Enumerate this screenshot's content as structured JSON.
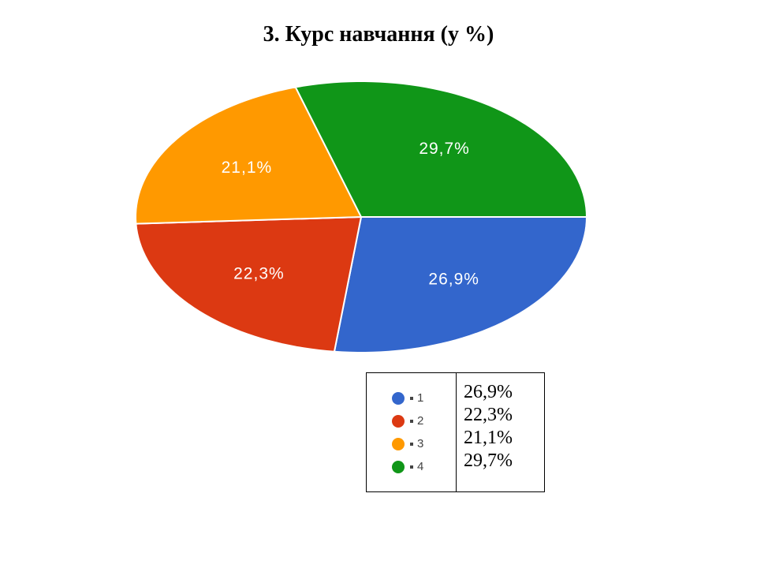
{
  "title": "3. Курс навчання (у %)",
  "chart_data": {
    "type": "pie",
    "title": "3. Курс навчання (у %)",
    "categories": [
      "1",
      "2",
      "3",
      "4"
    ],
    "values": [
      26.9,
      22.3,
      21.1,
      29.7
    ],
    "labels": [
      "26,9%",
      "22,3%",
      "21,1%",
      "29,7%"
    ],
    "colors": [
      "#3366cc",
      "#dc3912",
      "#ff9900",
      "#109618"
    ],
    "legend_position": "bottom-right table"
  },
  "legend": {
    "items": [
      {
        "label": "1",
        "color": "#3366cc"
      },
      {
        "label": "2",
        "color": "#dc3912"
      },
      {
        "label": "3",
        "color": "#ff9900"
      },
      {
        "label": "4",
        "color": "#109618"
      }
    ],
    "values": [
      "26,9%",
      "22,3%",
      "21,1%",
      "29,7%"
    ]
  }
}
